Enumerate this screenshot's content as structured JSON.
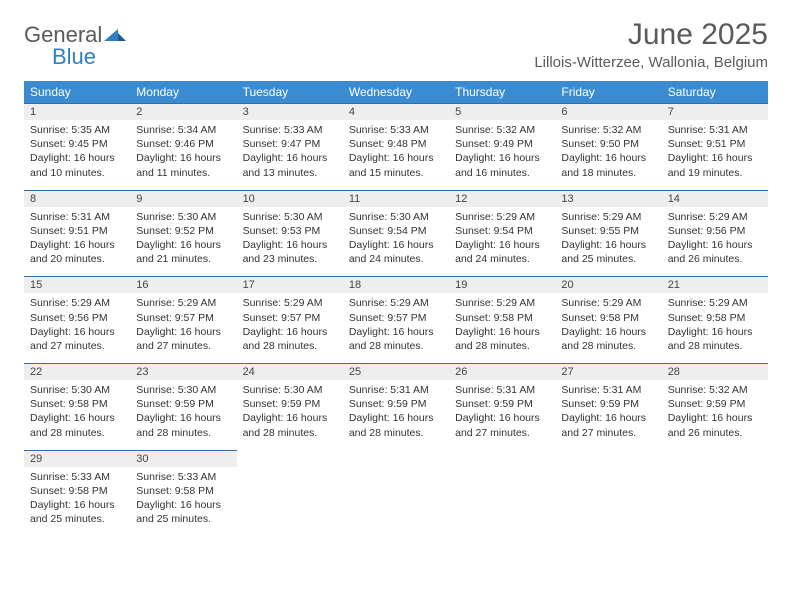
{
  "brand": {
    "part1": "General",
    "part2": "Blue"
  },
  "title": "June 2025",
  "location": "Lillois-Witterzee, Wallonia, Belgium",
  "colors": {
    "header_bg": "#3b8bd0",
    "header_text": "#ffffff",
    "daynum_bg": "#eeeeee",
    "daynum_border": "#2f6fa8",
    "page_bg": "#ffffff",
    "text": "#333333",
    "brand_gray": "#5a5a5a",
    "brand_blue": "#2f7fc2"
  },
  "weekdays": [
    "Sunday",
    "Monday",
    "Tuesday",
    "Wednesday",
    "Thursday",
    "Friday",
    "Saturday"
  ],
  "days": [
    {
      "n": 1,
      "sr": "5:35 AM",
      "ss": "9:45 PM",
      "dl": "16 hours and 10 minutes."
    },
    {
      "n": 2,
      "sr": "5:34 AM",
      "ss": "9:46 PM",
      "dl": "16 hours and 11 minutes."
    },
    {
      "n": 3,
      "sr": "5:33 AM",
      "ss": "9:47 PM",
      "dl": "16 hours and 13 minutes."
    },
    {
      "n": 4,
      "sr": "5:33 AM",
      "ss": "9:48 PM",
      "dl": "16 hours and 15 minutes."
    },
    {
      "n": 5,
      "sr": "5:32 AM",
      "ss": "9:49 PM",
      "dl": "16 hours and 16 minutes."
    },
    {
      "n": 6,
      "sr": "5:32 AM",
      "ss": "9:50 PM",
      "dl": "16 hours and 18 minutes."
    },
    {
      "n": 7,
      "sr": "5:31 AM",
      "ss": "9:51 PM",
      "dl": "16 hours and 19 minutes."
    },
    {
      "n": 8,
      "sr": "5:31 AM",
      "ss": "9:51 PM",
      "dl": "16 hours and 20 minutes."
    },
    {
      "n": 9,
      "sr": "5:30 AM",
      "ss": "9:52 PM",
      "dl": "16 hours and 21 minutes."
    },
    {
      "n": 10,
      "sr": "5:30 AM",
      "ss": "9:53 PM",
      "dl": "16 hours and 23 minutes."
    },
    {
      "n": 11,
      "sr": "5:30 AM",
      "ss": "9:54 PM",
      "dl": "16 hours and 24 minutes."
    },
    {
      "n": 12,
      "sr": "5:29 AM",
      "ss": "9:54 PM",
      "dl": "16 hours and 24 minutes."
    },
    {
      "n": 13,
      "sr": "5:29 AM",
      "ss": "9:55 PM",
      "dl": "16 hours and 25 minutes."
    },
    {
      "n": 14,
      "sr": "5:29 AM",
      "ss": "9:56 PM",
      "dl": "16 hours and 26 minutes."
    },
    {
      "n": 15,
      "sr": "5:29 AM",
      "ss": "9:56 PM",
      "dl": "16 hours and 27 minutes."
    },
    {
      "n": 16,
      "sr": "5:29 AM",
      "ss": "9:57 PM",
      "dl": "16 hours and 27 minutes."
    },
    {
      "n": 17,
      "sr": "5:29 AM",
      "ss": "9:57 PM",
      "dl": "16 hours and 28 minutes."
    },
    {
      "n": 18,
      "sr": "5:29 AM",
      "ss": "9:57 PM",
      "dl": "16 hours and 28 minutes."
    },
    {
      "n": 19,
      "sr": "5:29 AM",
      "ss": "9:58 PM",
      "dl": "16 hours and 28 minutes."
    },
    {
      "n": 20,
      "sr": "5:29 AM",
      "ss": "9:58 PM",
      "dl": "16 hours and 28 minutes."
    },
    {
      "n": 21,
      "sr": "5:29 AM",
      "ss": "9:58 PM",
      "dl": "16 hours and 28 minutes."
    },
    {
      "n": 22,
      "sr": "5:30 AM",
      "ss": "9:58 PM",
      "dl": "16 hours and 28 minutes."
    },
    {
      "n": 23,
      "sr": "5:30 AM",
      "ss": "9:59 PM",
      "dl": "16 hours and 28 minutes."
    },
    {
      "n": 24,
      "sr": "5:30 AM",
      "ss": "9:59 PM",
      "dl": "16 hours and 28 minutes."
    },
    {
      "n": 25,
      "sr": "5:31 AM",
      "ss": "9:59 PM",
      "dl": "16 hours and 28 minutes."
    },
    {
      "n": 26,
      "sr": "5:31 AM",
      "ss": "9:59 PM",
      "dl": "16 hours and 27 minutes."
    },
    {
      "n": 27,
      "sr": "5:31 AM",
      "ss": "9:59 PM",
      "dl": "16 hours and 27 minutes."
    },
    {
      "n": 28,
      "sr": "5:32 AM",
      "ss": "9:59 PM",
      "dl": "16 hours and 26 minutes."
    },
    {
      "n": 29,
      "sr": "5:33 AM",
      "ss": "9:58 PM",
      "dl": "16 hours and 25 minutes."
    },
    {
      "n": 30,
      "sr": "5:33 AM",
      "ss": "9:58 PM",
      "dl": "16 hours and 25 minutes."
    }
  ],
  "labels": {
    "sunrise": "Sunrise:",
    "sunset": "Sunset:",
    "daylight": "Daylight:"
  },
  "layout": {
    "columns": 7,
    "rows": 5,
    "trailing_empty": 5
  }
}
